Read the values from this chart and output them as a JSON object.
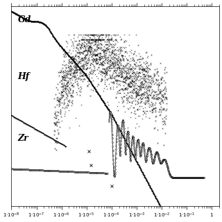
{
  "xmin": 1e-08,
  "xmax": 2.0,
  "ymin": 0.3,
  "ymax": 3000000,
  "gd_label": "Gd",
  "hf_label": "Hf",
  "zr_label": "Zr",
  "background_color": "#ffffff"
}
